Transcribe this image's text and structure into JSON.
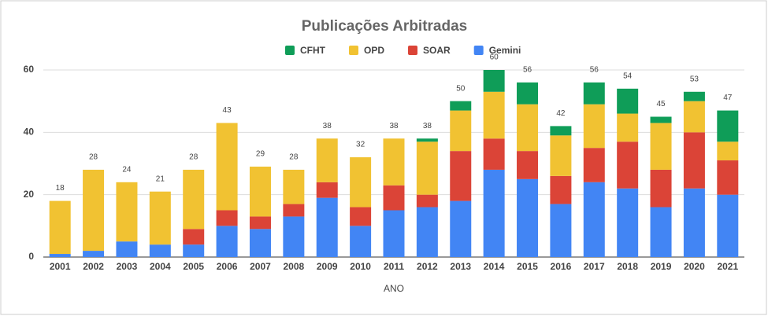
{
  "chart_data": {
    "type": "stacked-bar",
    "title": "Publicações Arbitradas",
    "x_label": "ANO",
    "categories": [
      "2001",
      "2002",
      "2003",
      "2004",
      "2005",
      "2006",
      "2007",
      "2008",
      "2009",
      "2010",
      "2011",
      "2012",
      "2013",
      "2014",
      "2015",
      "2016",
      "2017",
      "2018",
      "2019",
      "2020",
      "2021"
    ],
    "series": [
      {
        "name": "CFHT",
        "color": "#0f9d58",
        "values": [
          0,
          0,
          0,
          0,
          0,
          0,
          0,
          0,
          0,
          0,
          0,
          1,
          3,
          7,
          7,
          3,
          7,
          8,
          2,
          3,
          10
        ]
      },
      {
        "name": "OPD",
        "color": "#f1c232",
        "values": [
          17,
          26,
          19,
          17,
          19,
          28,
          16,
          11,
          14,
          16,
          15,
          17,
          13,
          15,
          15,
          13,
          14,
          9,
          15,
          10,
          6
        ]
      },
      {
        "name": "SOAR",
        "color": "#db4437",
        "values": [
          0,
          0,
          0,
          0,
          5,
          5,
          4,
          4,
          5,
          6,
          8,
          4,
          16,
          10,
          9,
          9,
          11,
          15,
          12,
          18,
          11
        ]
      },
      {
        "name": "Gemini",
        "color": "#4285f4",
        "values": [
          1,
          2,
          5,
          4,
          4,
          10,
          9,
          13,
          19,
          10,
          15,
          16,
          18,
          28,
          25,
          17,
          24,
          22,
          16,
          22,
          20
        ]
      }
    ],
    "totals": [
      18,
      28,
      24,
      21,
      28,
      43,
      29,
      28,
      38,
      32,
      38,
      38,
      50,
      60,
      56,
      42,
      56,
      54,
      45,
      53,
      47
    ],
    "ylim": [
      0,
      60
    ],
    "yticks": [
      0,
      20,
      40,
      60
    ],
    "grid": true,
    "legend": "top"
  }
}
